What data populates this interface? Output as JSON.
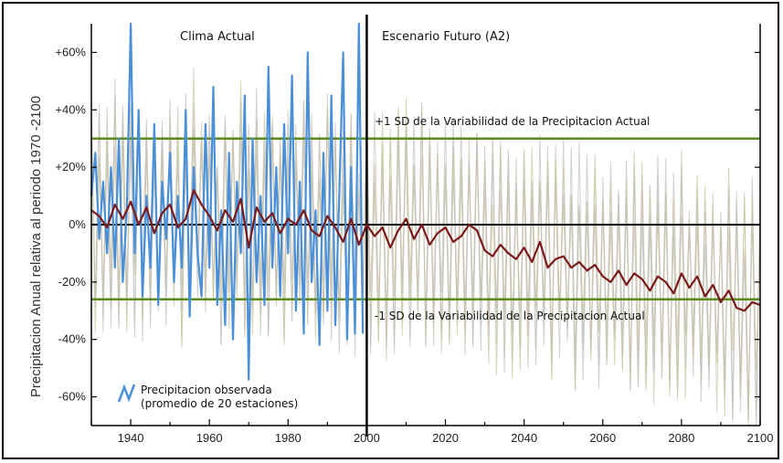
{
  "chart_data": {
    "type": "line",
    "ylabel": "Precipitacion Anual relativa al periodo 1970 -2100",
    "xlim": [
      1930,
      2100
    ],
    "ylim": [
      -70,
      70
    ],
    "x_ticks": [
      1940,
      1960,
      1980,
      2000,
      2020,
      2040,
      2060,
      2080,
      2100
    ],
    "y_ticks": [
      {
        "value": 60,
        "label": "+60%"
      },
      {
        "value": 40,
        "label": "+40%"
      },
      {
        "value": 20,
        "label": "+20%"
      },
      {
        "value": 0,
        "label": "0%"
      },
      {
        "value": -20,
        "label": "-20%"
      },
      {
        "value": -40,
        "label": "-40%"
      },
      {
        "value": -60,
        "label": "-60%"
      }
    ],
    "period_labels": {
      "current": "Clima Actual",
      "future": "Escenario Futuro (A2)"
    },
    "divider_year": 2000,
    "sd_lines": [
      {
        "value": 30,
        "label": "+1 SD de la Variabilidad de la Precipitacion Actual"
      },
      {
        "value": -26,
        "label": "-1 SD de la Variabilidad de la Precipitacion Actual"
      }
    ],
    "legend": {
      "label_line1": "Precipitacion observada",
      "label_line2": "(promedio de 20 estaciones)",
      "placement": "bottom-left"
    },
    "colors": {
      "observed": "#4a90d9",
      "model_mean": "#7a1a1a",
      "sd_line": "#5a8a1e",
      "ensemble": "#bdb8a8",
      "axis": "#000000"
    },
    "series": [
      {
        "role": "observed",
        "x": [
          1930,
          1931,
          1932,
          1933,
          1934,
          1935,
          1936,
          1937,
          1938,
          1939,
          1940,
          1941,
          1942,
          1943,
          1944,
          1945,
          1946,
          1947,
          1948,
          1949,
          1950,
          1951,
          1952,
          1953,
          1954,
          1955,
          1956,
          1957,
          1958,
          1959,
          1960,
          1961,
          1962,
          1963,
          1964,
          1965,
          1966,
          1967,
          1968,
          1969,
          1970,
          1971,
          1972,
          1973,
          1974,
          1975,
          1976,
          1977,
          1978,
          1979,
          1980,
          1981,
          1982,
          1983,
          1984,
          1985,
          1986,
          1987,
          1988,
          1989,
          1990,
          1991,
          1992,
          1993,
          1994,
          1995,
          1996,
          1997,
          1998,
          1999
        ],
        "values": [
          10,
          25,
          -5,
          15,
          -10,
          20,
          -15,
          30,
          -20,
          5,
          70,
          -10,
          40,
          -25,
          10,
          -15,
          35,
          -28,
          15,
          -5,
          25,
          -20,
          10,
          -15,
          40,
          -32,
          20,
          -10,
          -25,
          35,
          -15,
          48,
          -28,
          5,
          -35,
          25,
          -40,
          15,
          -10,
          45,
          -54,
          30,
          -20,
          10,
          -28,
          55,
          -15,
          20,
          -25,
          35,
          -10,
          52,
          -30,
          15,
          -38,
          60,
          -20,
          5,
          -42,
          25,
          -30,
          45,
          -35,
          10,
          60,
          -40,
          20,
          -38,
          70,
          -38
        ]
      },
      {
        "role": "model_mean",
        "x": [
          1930,
          1932,
          1934,
          1936,
          1938,
          1940,
          1942,
          1944,
          1946,
          1948,
          1950,
          1952,
          1954,
          1956,
          1958,
          1960,
          1962,
          1964,
          1966,
          1968,
          1970,
          1972,
          1974,
          1976,
          1978,
          1980,
          1982,
          1984,
          1986,
          1988,
          1990,
          1992,
          1994,
          1996,
          1998,
          2000,
          2002,
          2004,
          2006,
          2008,
          2010,
          2012,
          2014,
          2016,
          2018,
          2020,
          2022,
          2024,
          2026,
          2028,
          2030,
          2032,
          2034,
          2036,
          2038,
          2040,
          2042,
          2044,
          2046,
          2048,
          2050,
          2052,
          2054,
          2056,
          2058,
          2060,
          2062,
          2064,
          2066,
          2068,
          2070,
          2072,
          2074,
          2076,
          2078,
          2080,
          2082,
          2084,
          2086,
          2088,
          2090,
          2092,
          2094,
          2096,
          2098,
          2100
        ],
        "values": [
          5,
          3,
          -1,
          7,
          2,
          8,
          0,
          6,
          -3,
          4,
          7,
          -1,
          2,
          12,
          7,
          3,
          -2,
          5,
          1,
          9,
          -8,
          6,
          1,
          4,
          -3,
          2,
          0,
          5,
          -2,
          -4,
          3,
          -1,
          -6,
          2,
          -7,
          0,
          -4,
          -1,
          -8,
          -2,
          2,
          -5,
          0,
          -7,
          -3,
          -1,
          -6,
          -4,
          0,
          -2,
          -9,
          -11,
          -7,
          -10,
          -12,
          -8,
          -13,
          -6,
          -15,
          -12,
          -11,
          -15,
          -13,
          -16,
          -14,
          -18,
          -20,
          -16,
          -21,
          -17,
          -19,
          -23,
          -18,
          -20,
          -24,
          -17,
          -22,
          -18,
          -25,
          -21,
          -27,
          -23,
          -29,
          -30,
          -27,
          -28
        ]
      }
    ]
  }
}
